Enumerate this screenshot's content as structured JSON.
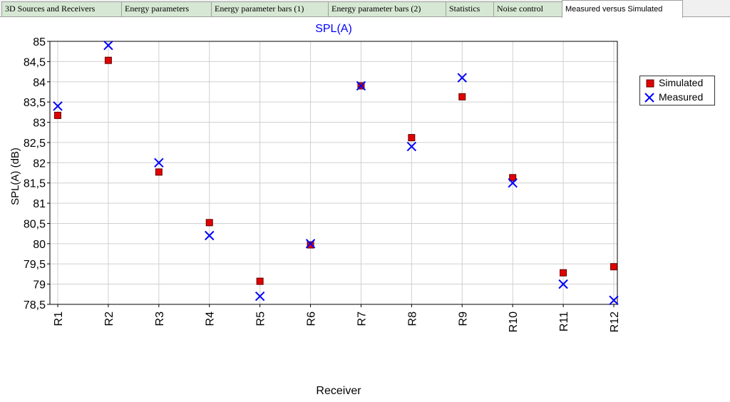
{
  "tabs": [
    {
      "label": "3D Sources and Receivers",
      "active": false
    },
    {
      "label": "Energy parameters",
      "active": false
    },
    {
      "label": "Energy parameter bars (1)",
      "active": false
    },
    {
      "label": "Energy parameter bars (2)",
      "active": false
    },
    {
      "label": "Statistics",
      "active": false
    },
    {
      "label": "Noise control",
      "active": false
    },
    {
      "label": "Measured versus Simulated",
      "active": true
    }
  ],
  "colors": {
    "tab_bg": "#d6e8d3",
    "title": "#0000ff",
    "simulated": "#e00000",
    "measured": "#0000ff",
    "grid": "#d0d0d0"
  },
  "chart_data": {
    "type": "scatter",
    "title": "SPL(A)",
    "xlabel": "Receiver",
    "ylabel": "SPL(A) (dB)",
    "categories": [
      "R1",
      "R2",
      "R3",
      "R4",
      "R5",
      "R6",
      "R7",
      "R8",
      "R9",
      "R10",
      "R11",
      "R12"
    ],
    "ylim": [
      78.5,
      85
    ],
    "yticks": [
      "78,5",
      "79",
      "79,5",
      "80",
      "80,5",
      "81",
      "81,5",
      "82",
      "82,5",
      "83",
      "83,5",
      "84",
      "84,5",
      "85"
    ],
    "grid": true,
    "legend_position": "right",
    "series": [
      {
        "name": "Simulated",
        "marker": "square",
        "color": "#e00000",
        "values": [
          83.17,
          84.53,
          81.77,
          80.52,
          79.07,
          79.97,
          83.9,
          82.62,
          83.63,
          81.63,
          79.28,
          79.43
        ]
      },
      {
        "name": "Measured",
        "marker": "x",
        "color": "#0000ff",
        "values": [
          83.4,
          84.9,
          82.0,
          80.2,
          78.7,
          80.0,
          83.9,
          82.4,
          84.1,
          81.5,
          79.0,
          78.6
        ]
      }
    ]
  }
}
